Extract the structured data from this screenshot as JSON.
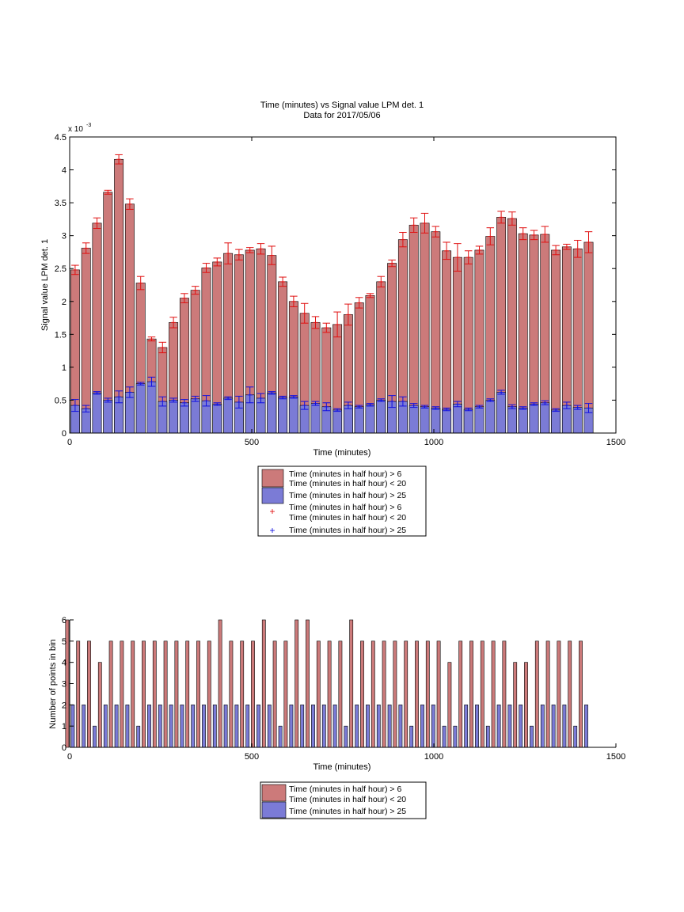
{
  "title_line1": "Time (minutes) vs Signal value LPM det. 1",
  "title_line2": "Data for 2017/05/06",
  "colors": {
    "red_bar": "#cc7a7a",
    "blue_bar": "#7b7bd6",
    "red_err": "#e01010",
    "blue_err": "#1010e0"
  },
  "chart_data": [
    {
      "type": "bar",
      "title": "Time (minutes) vs Signal value LPM det. 1",
      "subtitle": "Data for 2017/05/06",
      "xlabel": "Time (minutes)",
      "ylabel": "Signal value LPM det. 1",
      "y_exponent_label": "x 10",
      "y_exponent_power": "-3",
      "xlim": [
        0,
        1500
      ],
      "ylim": [
        0,
        4.5
      ],
      "xticks": [
        "0",
        "500",
        "1000",
        "1500"
      ],
      "yticks": [
        "0",
        "0.5",
        "1",
        "1.5",
        "2",
        "2.5",
        "3",
        "3.5",
        "4",
        "4.5"
      ],
      "x": [
        15,
        45,
        75,
        105,
        135,
        165,
        195,
        225,
        255,
        285,
        315,
        345,
        375,
        405,
        435,
        465,
        495,
        525,
        555,
        585,
        615,
        645,
        675,
        705,
        735,
        765,
        795,
        825,
        855,
        885,
        915,
        945,
        975,
        1005,
        1035,
        1065,
        1095,
        1125,
        1155,
        1185,
        1215,
        1245,
        1275,
        1305,
        1335,
        1365,
        1395,
        1425
      ],
      "series": [
        {
          "name": "Time (minutes in half hour) > 6\nTime (minutes in half hour) < 20",
          "values": [
            2.48,
            2.81,
            3.19,
            3.66,
            4.16,
            3.48,
            2.28,
            1.43,
            1.3,
            1.68,
            2.05,
            2.17,
            2.51,
            2.6,
            2.73,
            2.71,
            2.78,
            2.8,
            2.7,
            2.3,
            2.0,
            1.82,
            1.68,
            1.6,
            1.65,
            1.8,
            1.98,
            2.09,
            2.3,
            2.58,
            2.94,
            3.16,
            3.19,
            3.06,
            2.77,
            2.67,
            2.67,
            2.78,
            2.99,
            3.28,
            3.26,
            3.03,
            3.01,
            3.02,
            2.78,
            2.83,
            2.8,
            2.9
          ]
        },
        {
          "name": "Time (minutes in half hour) > 25",
          "values": [
            0.42,
            0.37,
            0.61,
            0.5,
            0.55,
            0.62,
            0.75,
            0.78,
            0.48,
            0.5,
            0.46,
            0.52,
            0.49,
            0.44,
            0.53,
            0.47,
            0.58,
            0.53,
            0.61,
            0.54,
            0.55,
            0.42,
            0.45,
            0.4,
            0.35,
            0.42,
            0.4,
            0.43,
            0.5,
            0.48,
            0.48,
            0.42,
            0.4,
            0.38,
            0.36,
            0.44,
            0.36,
            0.4,
            0.5,
            0.62,
            0.4,
            0.38,
            0.44,
            0.46,
            0.35,
            0.42,
            0.39,
            0.38
          ]
        }
      ],
      "errors": {
        "Time (minutes in half hour) > 6\nTime (minutes in half hour) < 20": [
          0.07,
          0.08,
          0.08,
          0.03,
          0.07,
          0.08,
          0.1,
          0.03,
          0.08,
          0.08,
          0.07,
          0.06,
          0.07,
          0.06,
          0.16,
          0.08,
          0.04,
          0.08,
          0.14,
          0.07,
          0.08,
          0.15,
          0.09,
          0.07,
          0.19,
          0.16,
          0.08,
          0.03,
          0.08,
          0.05,
          0.11,
          0.11,
          0.15,
          0.08,
          0.13,
          0.21,
          0.1,
          0.06,
          0.13,
          0.09,
          0.1,
          0.09,
          0.07,
          0.12,
          0.07,
          0.04,
          0.13,
          0.16
        ],
        "Time (minutes in half hour) > 25": [
          0.09,
          0.05,
          0.02,
          0.03,
          0.09,
          0.08,
          0.02,
          0.07,
          0.07,
          0.03,
          0.05,
          0.04,
          0.08,
          0.02,
          0.02,
          0.09,
          0.12,
          0.07,
          0.02,
          0.02,
          0.02,
          0.06,
          0.03,
          0.06,
          0.02,
          0.05,
          0.02,
          0.02,
          0.02,
          0.09,
          0.07,
          0.03,
          0.02,
          0.02,
          0.02,
          0.04,
          0.02,
          0.02,
          0.02,
          0.03,
          0.03,
          0.02,
          0.02,
          0.03,
          0.02,
          0.05,
          0.03,
          0.07
        ]
      },
      "legend": {
        "placement": "below",
        "entries": [
          {
            "label": "Time (minutes in half hour) > 6",
            "label2": "Time (minutes in half hour) < 20"
          },
          {
            "label": "Time (minutes in half hour) > 25"
          },
          {
            "label": "Time (minutes in half hour) > 6",
            "label2": "Time (minutes in half hour) < 20"
          },
          {
            "label": "Time (minutes in half hour) > 25"
          }
        ]
      }
    },
    {
      "type": "bar",
      "xlabel": "Time (minutes)",
      "ylabel": "Number of points in bin",
      "xlim": [
        0,
        1500
      ],
      "ylim": [
        0,
        6
      ],
      "xticks": [
        "0",
        "500",
        "1000",
        "1500"
      ],
      "yticks": [
        "0",
        "1",
        "2",
        "3",
        "4",
        "5",
        "6"
      ],
      "x": [
        15,
        45,
        75,
        105,
        135,
        165,
        195,
        225,
        255,
        285,
        315,
        345,
        375,
        405,
        435,
        465,
        495,
        525,
        555,
        585,
        615,
        645,
        675,
        705,
        735,
        765,
        795,
        825,
        855,
        885,
        915,
        945,
        975,
        1005,
        1035,
        1065,
        1095,
        1125,
        1155,
        1185,
        1215,
        1245,
        1275,
        1305,
        1335,
        1365,
        1395,
        1425
      ],
      "series": [
        {
          "name": "Time (minutes in half hour) > 6\nTime (minutes in half hour) < 20",
          "values": [
            6,
            5,
            5,
            4,
            5,
            5,
            5,
            5,
            5,
            5,
            5,
            5,
            5,
            5,
            6,
            5,
            5,
            5,
            6,
            5,
            5,
            6,
            6,
            5,
            5,
            5,
            6,
            5,
            5,
            5,
            5,
            5,
            5,
            5,
            5,
            4,
            5,
            5,
            5,
            5,
            5,
            4,
            4,
            5,
            5,
            5,
            5,
            5
          ]
        },
        {
          "name": "Time (minutes in half hour) > 25",
          "values": [
            2,
            2,
            1,
            2,
            2,
            2,
            1,
            2,
            2,
            2,
            2,
            2,
            2,
            2,
            2,
            2,
            2,
            2,
            2,
            1,
            2,
            2,
            2,
            2,
            2,
            1,
            2,
            2,
            2,
            2,
            2,
            1,
            2,
            2,
            1,
            1,
            2,
            2,
            1,
            2,
            2,
            2,
            1,
            2,
            2,
            2,
            1,
            2
          ]
        }
      ],
      "legend": {
        "placement": "below",
        "entries": [
          {
            "label": "Time (minutes in half hour) > 6",
            "label2": "Time (minutes in half hour) < 20"
          },
          {
            "label": "Time (minutes in half hour) > 25"
          }
        ]
      }
    }
  ]
}
